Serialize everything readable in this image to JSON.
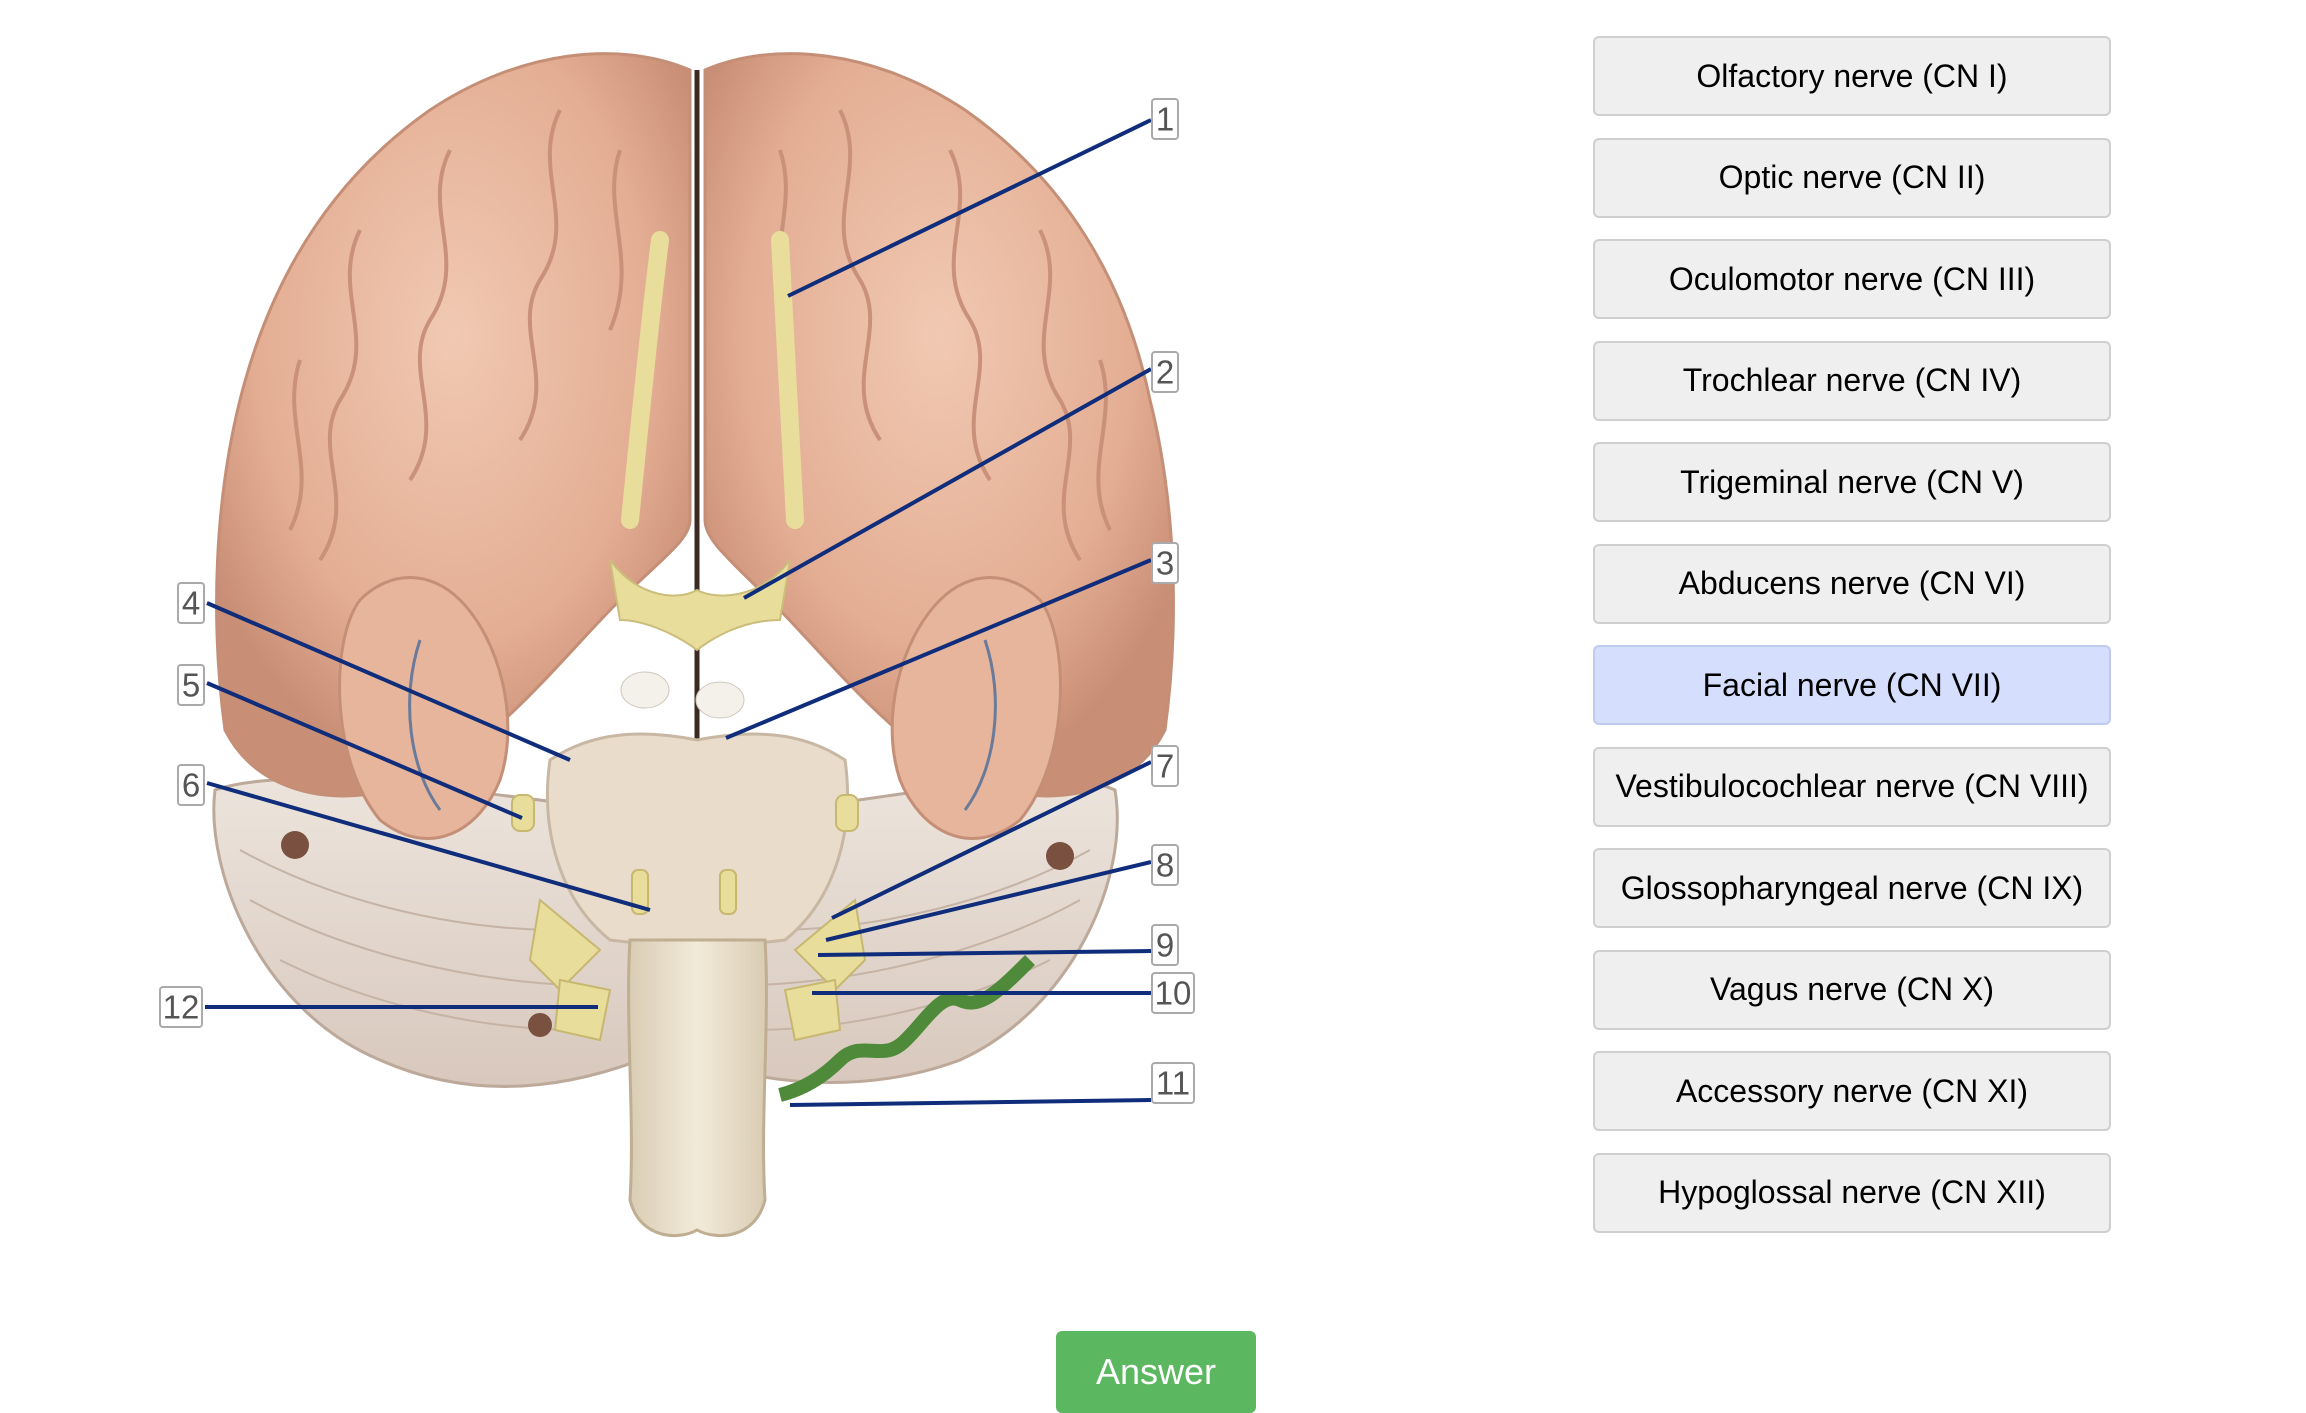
{
  "diagram": {
    "labels": [
      "1",
      "2",
      "3",
      "4",
      "5",
      "6",
      "7",
      "8",
      "9",
      "10",
      "11",
      "12"
    ]
  },
  "options": [
    {
      "label": "Olfactory nerve (CN I)",
      "selected": false
    },
    {
      "label": "Optic nerve (CN II)",
      "selected": false
    },
    {
      "label": "Oculomotor nerve (CN III)",
      "selected": false
    },
    {
      "label": "Trochlear nerve (CN IV)",
      "selected": false
    },
    {
      "label": "Trigeminal nerve (CN V)",
      "selected": false
    },
    {
      "label": "Abducens nerve (CN VI)",
      "selected": false
    },
    {
      "label": "Facial nerve (CN VII)",
      "selected": true
    },
    {
      "label": "Vestibulocochlear nerve (CN VIII)",
      "selected": false
    },
    {
      "label": "Glossopharyngeal nerve (CN IX)",
      "selected": false
    },
    {
      "label": "Vagus nerve (CN X)",
      "selected": false
    },
    {
      "label": "Accessory nerve (CN XI)",
      "selected": false
    },
    {
      "label": "Hypoglossal nerve (CN XII)",
      "selected": false
    }
  ],
  "answer_button": {
    "label": "Answer"
  },
  "colors": {
    "selected_option": "#d5defc",
    "option_background": "#efefef",
    "answer_button": "#5cb860",
    "leader_line": "#0f2d7a"
  }
}
